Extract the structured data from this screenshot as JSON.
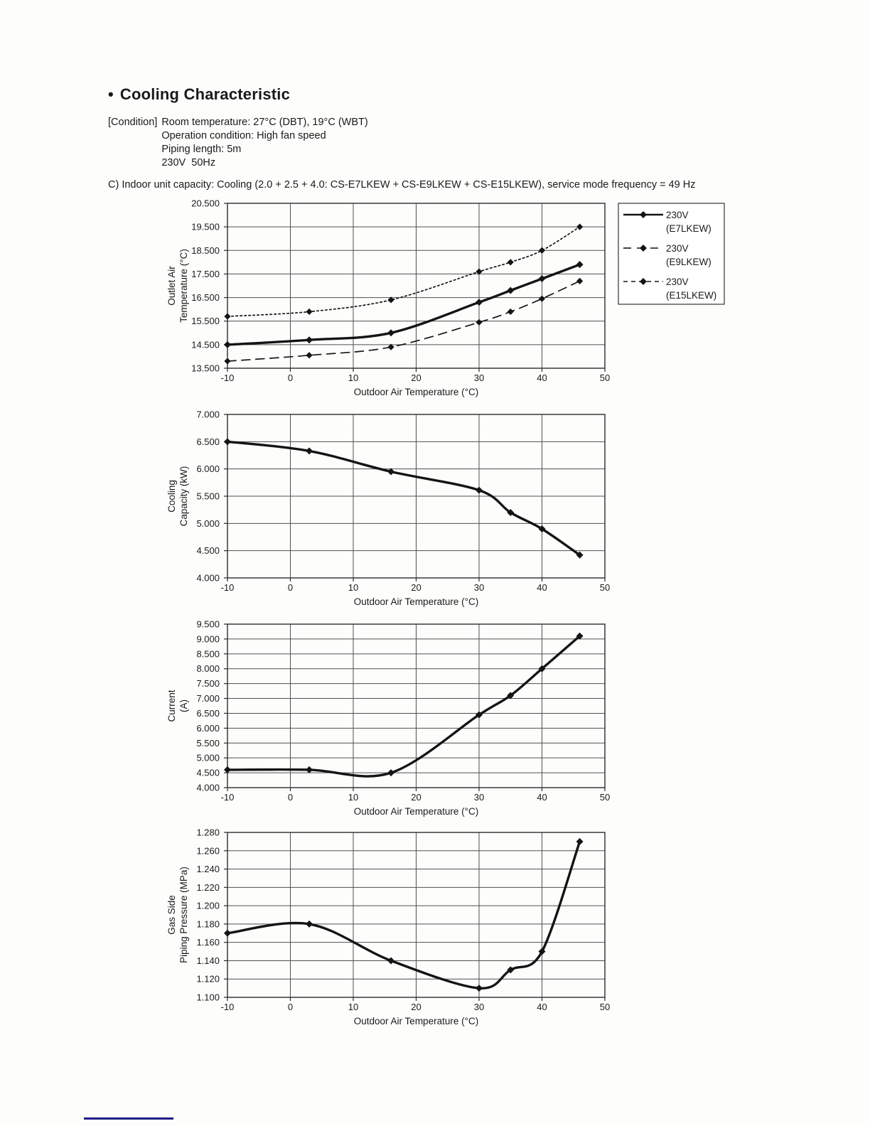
{
  "page": {
    "title_bullet": "•",
    "title": "Cooling Characteristic",
    "conditions": {
      "label": "[Condition]",
      "lines": [
        "Room temperature: 27°C (DBT), 19°C (WBT)",
        "Operation condition: High fan speed",
        "Piping length: 5m",
        "230V  50Hz"
      ]
    },
    "section_heading": "C) Indoor unit capacity: Cooling (2.0 + 2.5 + 4.0: CS-E7LKEW + CS-E9LKEW + CS-E15LKEW), service mode frequency = 49 Hz",
    "ink_color": "#1a1a1a",
    "footer_rule_color": "#1d1d85"
  },
  "chart_data": [
    {
      "type": "line",
      "title": "",
      "xlabel": "Outdoor Air Temperature (°C)",
      "ylabel_lines": [
        "Outlet Air",
        "Temperature (°C)"
      ],
      "x": [
        -10,
        3,
        16,
        30,
        35,
        40,
        46
      ],
      "xlim": [
        -10,
        50
      ],
      "xticks": [
        -10,
        0,
        10,
        20,
        30,
        40,
        50
      ],
      "ylim": [
        13.5,
        20.5
      ],
      "ytick_step": 1.0,
      "ytick_decimals": 3,
      "grid": true,
      "legend": {
        "visible": true,
        "position": "right"
      },
      "series": [
        {
          "name": "230V (E7LKEW)",
          "label_lines": [
            "230V",
            "(E7LKEW)"
          ],
          "style": "solid",
          "emphasis": "thick",
          "values": [
            14.5,
            14.7,
            15.0,
            16.3,
            16.8,
            17.3,
            17.9
          ]
        },
        {
          "name": "230V (E9LKEW)",
          "label_lines": [
            "230V",
            "(E9LKEW)"
          ],
          "style": "dash",
          "emphasis": "thin",
          "values": [
            13.8,
            14.05,
            14.4,
            15.45,
            15.9,
            16.45,
            17.2
          ]
        },
        {
          "name": "230V (E15LKEW)",
          "label_lines": [
            "230V",
            "(E15LKEW)"
          ],
          "style": "dot",
          "emphasis": "thin",
          "values": [
            15.7,
            15.9,
            16.4,
            17.6,
            18.0,
            18.5,
            19.5
          ]
        }
      ]
    },
    {
      "type": "line",
      "title": "",
      "xlabel": "Outdoor Air Temperature (°C)",
      "ylabel_lines": [
        "Cooling",
        "Capacity (kW)"
      ],
      "x": [
        -10,
        3,
        16,
        30,
        35,
        40,
        46
      ],
      "xlim": [
        -10,
        50
      ],
      "xticks": [
        -10,
        0,
        10,
        20,
        30,
        40,
        50
      ],
      "ylim": [
        4.0,
        7.0
      ],
      "ytick_step": 0.5,
      "ytick_decimals": 3,
      "grid": true,
      "legend": {
        "visible": false
      },
      "series": [
        {
          "name": "Cooling capacity",
          "label_lines": [],
          "style": "solid",
          "emphasis": "thick",
          "values": [
            6.5,
            6.33,
            5.95,
            5.61,
            5.2,
            4.9,
            4.42
          ]
        }
      ]
    },
    {
      "type": "line",
      "title": "",
      "xlabel": "Outdoor Air Temperature (°C)",
      "ylabel_lines": [
        "Current",
        "(A)"
      ],
      "x": [
        -10,
        3,
        16,
        30,
        35,
        40,
        46
      ],
      "xlim": [
        -10,
        50
      ],
      "xticks": [
        -10,
        0,
        10,
        20,
        30,
        40,
        50
      ],
      "ylim": [
        4.0,
        9.5
      ],
      "ytick_step": 0.5,
      "ytick_decimals": 3,
      "grid": true,
      "legend": {
        "visible": false
      },
      "series": [
        {
          "name": "Current",
          "label_lines": [],
          "style": "solid",
          "emphasis": "thick",
          "values": [
            4.6,
            4.6,
            4.5,
            6.45,
            7.1,
            8.0,
            9.1
          ]
        }
      ]
    },
    {
      "type": "line",
      "title": "",
      "xlabel": "Outdoor Air Temperature (°C)",
      "ylabel_lines": [
        "Gas Side",
        "Piping Pressure (MPa)"
      ],
      "x": [
        -10,
        3,
        16,
        30,
        35,
        40,
        46
      ],
      "xlim": [
        -10,
        50
      ],
      "xticks": [
        -10,
        0,
        10,
        20,
        30,
        40,
        50
      ],
      "ylim": [
        1.1,
        1.28
      ],
      "ytick_step": 0.02,
      "ytick_decimals": 3,
      "grid": true,
      "legend": {
        "visible": false
      },
      "series": [
        {
          "name": "Gas side piping pressure",
          "label_lines": [],
          "style": "solid",
          "emphasis": "thick",
          "values": [
            1.17,
            1.18,
            1.14,
            1.11,
            1.13,
            1.15,
            1.27
          ]
        }
      ]
    }
  ]
}
